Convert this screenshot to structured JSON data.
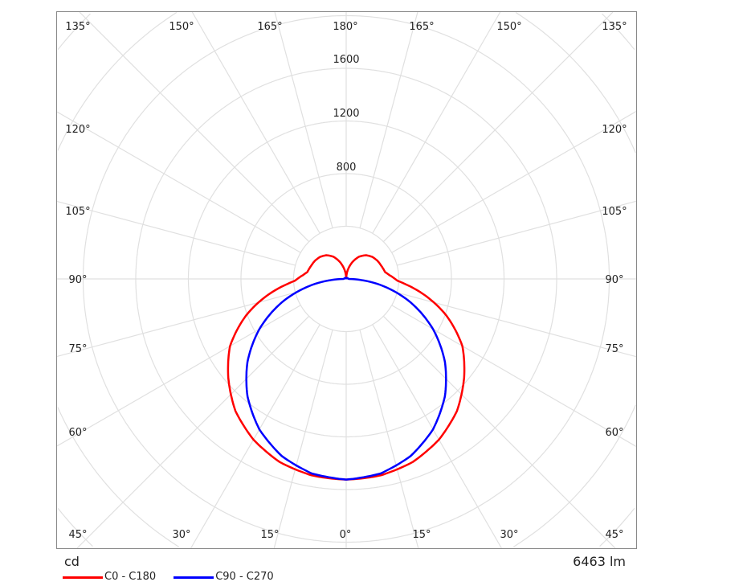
{
  "chart_data": {
    "type": "polar",
    "unit_label": "cd",
    "flux_label": "6463 lm",
    "ring_values": [
      400,
      800,
      1200,
      1600,
      2000,
      2400,
      2800
    ],
    "ring_labels": [
      "800",
      "1200",
      "1600"
    ],
    "angle_labels": {
      "top": [
        "135°",
        "150°",
        "165°",
        "180°",
        "165°",
        "150°",
        "135°"
      ],
      "left": [
        "120°",
        "105°",
        "90°",
        "75°",
        "60°"
      ],
      "right": [
        "120°",
        "105°",
        "90°",
        "75°",
        "60°"
      ],
      "bottom": [
        "45°",
        "30°",
        "15°",
        "0°",
        "15°",
        "30°",
        "45°"
      ]
    },
    "grid": true,
    "legend_position": "bottom-left",
    "series": [
      {
        "name": "C0 - C180",
        "color": "#ff0000",
        "angles": [
          0,
          10,
          20,
          30,
          40,
          50,
          60,
          70,
          80,
          85,
          88,
          90,
          95,
          100,
          110,
          120,
          130,
          140,
          150,
          160,
          170,
          180
        ],
        "values": [
          1524,
          1515,
          1480,
          1410,
          1310,
          1170,
          1020,
          810,
          570,
          450,
          390,
          372,
          330,
          300,
          285,
          275,
          260,
          235,
          195,
          135,
          68,
          0
        ]
      },
      {
        "name": "C90 - C270",
        "color": "#0000ff",
        "angles": [
          0,
          10,
          20,
          30,
          40,
          50,
          60,
          70,
          80,
          85,
          90,
          100,
          120,
          150,
          180
        ],
        "values": [
          1524,
          1501,
          1432,
          1320,
          1167,
          980,
          762,
          521,
          265,
          133,
          20,
          15,
          12,
          8,
          0
        ]
      }
    ]
  }
}
